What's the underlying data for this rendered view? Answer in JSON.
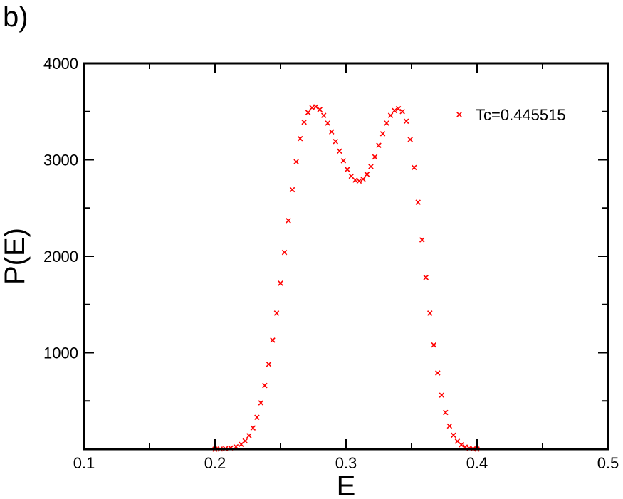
{
  "panel_label": "b)",
  "chart_data": {
    "type": "scatter",
    "title": "",
    "xlabel": "E",
    "ylabel": "P(E)",
    "xlim": [
      0.1,
      0.5
    ],
    "ylim": [
      0,
      4000
    ],
    "x_ticks": [
      0.1,
      0.2,
      0.3,
      0.4,
      0.5
    ],
    "x_tick_labels": [
      "0.1",
      "0.2",
      "0.3",
      "0.4",
      "0.5"
    ],
    "y_ticks": [
      1000,
      2000,
      3000,
      4000
    ],
    "y_tick_labels": [
      "1000",
      "2000",
      "3000",
      "4000"
    ],
    "grid": false,
    "legend_position": "top-right",
    "marker": "x",
    "series_color": "#ff0000",
    "series": [
      {
        "name": "Tc=0.445515",
        "points": [
          [
            0.2,
            0
          ],
          [
            0.204,
            2
          ],
          [
            0.208,
            5
          ],
          [
            0.212,
            12
          ],
          [
            0.216,
            25
          ],
          [
            0.22,
            50
          ],
          [
            0.223,
            85
          ],
          [
            0.226,
            140
          ],
          [
            0.229,
            220
          ],
          [
            0.232,
            330
          ],
          [
            0.235,
            480
          ],
          [
            0.238,
            660
          ],
          [
            0.241,
            880
          ],
          [
            0.244,
            1130
          ],
          [
            0.247,
            1410
          ],
          [
            0.25,
            1720
          ],
          [
            0.253,
            2040
          ],
          [
            0.256,
            2370
          ],
          [
            0.259,
            2690
          ],
          [
            0.262,
            2980
          ],
          [
            0.265,
            3220
          ],
          [
            0.268,
            3390
          ],
          [
            0.271,
            3490
          ],
          [
            0.274,
            3540
          ],
          [
            0.277,
            3550
          ],
          [
            0.28,
            3520
          ],
          [
            0.283,
            3460
          ],
          [
            0.286,
            3380
          ],
          [
            0.289,
            3290
          ],
          [
            0.292,
            3190
          ],
          [
            0.295,
            3090
          ],
          [
            0.298,
            2990
          ],
          [
            0.301,
            2900
          ],
          [
            0.304,
            2830
          ],
          [
            0.307,
            2790
          ],
          [
            0.31,
            2780
          ],
          [
            0.313,
            2800
          ],
          [
            0.316,
            2850
          ],
          [
            0.319,
            2930
          ],
          [
            0.322,
            3030
          ],
          [
            0.325,
            3150
          ],
          [
            0.328,
            3270
          ],
          [
            0.331,
            3380
          ],
          [
            0.334,
            3460
          ],
          [
            0.337,
            3510
          ],
          [
            0.34,
            3530
          ],
          [
            0.343,
            3500
          ],
          [
            0.346,
            3400
          ],
          [
            0.349,
            3210
          ],
          [
            0.352,
            2920
          ],
          [
            0.355,
            2560
          ],
          [
            0.358,
            2170
          ],
          [
            0.361,
            1780
          ],
          [
            0.364,
            1410
          ],
          [
            0.367,
            1080
          ],
          [
            0.37,
            790
          ],
          [
            0.373,
            560
          ],
          [
            0.376,
            380
          ],
          [
            0.379,
            240
          ],
          [
            0.382,
            145
          ],
          [
            0.385,
            82
          ],
          [
            0.388,
            45
          ],
          [
            0.391,
            22
          ],
          [
            0.394,
            10
          ],
          [
            0.397,
            4
          ],
          [
            0.4,
            1
          ]
        ]
      }
    ]
  }
}
